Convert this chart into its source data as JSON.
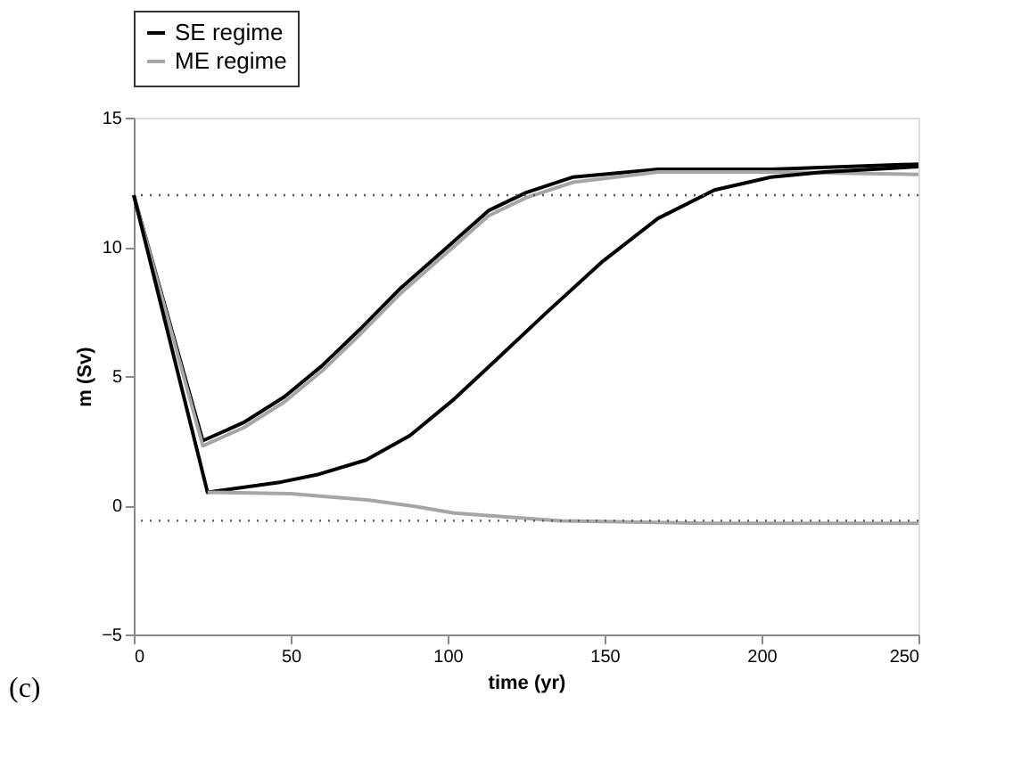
{
  "chart_data": {
    "type": "line",
    "xlabel": "time (yr)",
    "ylabel": "m (Sv)",
    "xlim": [
      0,
      250
    ],
    "ylim": [
      -5,
      15
    ],
    "xticks": [
      0,
      50,
      100,
      150,
      200,
      250
    ],
    "yticks": [
      -5,
      0,
      5,
      10,
      15
    ],
    "grid": false,
    "legend": "top",
    "marker": "none",
    "line_style": "solid",
    "series": [
      {
        "name": "SE regime",
        "color": "#000000",
        "x": [
          0,
          22,
          35,
          48,
          60,
          72,
          85,
          100,
          113,
          125,
          140,
          167,
          203,
          250
        ],
        "values": [
          12,
          2.5,
          3.2,
          4.2,
          5.4,
          6.8,
          8.4,
          10.0,
          11.4,
          12.1,
          12.7,
          13.0,
          13.0,
          13.2
        ]
      },
      {
        "name": "ME regime",
        "color": "#a6a6a6",
        "x": [
          0,
          22,
          35,
          48,
          60,
          72,
          85,
          100,
          113,
          125,
          140,
          167,
          203,
          250
        ],
        "values": [
          12,
          2.3,
          3.0,
          4.0,
          5.2,
          6.6,
          8.2,
          9.8,
          11.2,
          11.9,
          12.5,
          12.9,
          12.9,
          12.8
        ]
      },
      {
        "color": "#000000",
        "x": [
          0,
          23.5,
          47,
          59,
          74,
          88,
          102,
          117,
          131,
          149,
          167,
          185,
          203,
          220,
          250
        ],
        "values": [
          12,
          0.5,
          0.9,
          1.2,
          1.75,
          2.7,
          4.1,
          5.8,
          7.4,
          9.4,
          11.1,
          12.2,
          12.7,
          12.9,
          13.1
        ]
      },
      {
        "color": "#a6a6a6",
        "x": [
          23.5,
          50,
          75,
          90,
          102,
          136,
          183,
          250
        ],
        "values": [
          0.5,
          0.45,
          0.2,
          -0.05,
          -0.3,
          -0.6,
          -0.7,
          -0.7
        ]
      }
    ],
    "ref_lines": [
      {
        "axis": "y",
        "value": 12,
        "line_style": "dotted",
        "color": "#555555"
      },
      {
        "axis": "y",
        "value": -0.6,
        "line_style": "dotted",
        "color": "#555555"
      }
    ],
    "annotations": [
      "(c)"
    ]
  }
}
